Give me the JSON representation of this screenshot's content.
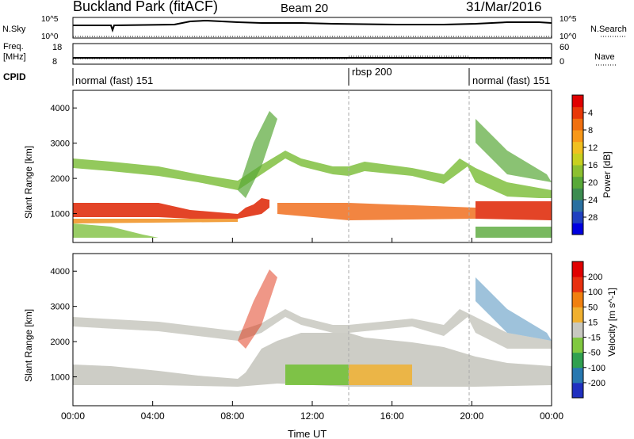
{
  "header": {
    "site": "Buckland Park (fitACF)",
    "beam": "Beam 20",
    "date": "31/Mar/2016"
  },
  "noise_panel": {
    "left_label": "N.Sky",
    "right_label": "N.Search",
    "ytick_top": "10^5",
    "ytick_bottom": "10^0",
    "right_tick_top": "10^5",
    "right_tick_bottom": "10^0"
  },
  "freq_panel": {
    "left_label_1": "Freq.",
    "left_label_2": "[MHz]",
    "right_label": "Nave",
    "left_tick_top": "18",
    "left_tick_bottom": "8",
    "right_tick_top": "60",
    "right_tick_bottom": "0"
  },
  "cpid_panel": {
    "label": "CPID",
    "modes": [
      {
        "name": "normal (fast) 151",
        "start_hour": 0
      },
      {
        "name": "rbsp 200",
        "start_hour": 14
      },
      {
        "name": "normal (fast) 151",
        "start_hour": 20
      }
    ]
  },
  "chart_data": [
    {
      "type": "heatmap",
      "title": "",
      "ylabel": "Slant Range [km]",
      "xlabel": "",
      "ylim": [
        180,
        4500
      ],
      "xlim": [
        0,
        24
      ],
      "y_ticks": [
        "1000",
        "2000",
        "3000",
        "4000"
      ],
      "colorbar": {
        "label": "Power [dB]",
        "ticks": [
          "4",
          "8",
          "12",
          "16",
          "20",
          "24",
          "28"
        ],
        "colors": [
          "#0000e0",
          "#2040c0",
          "#2a70a0",
          "#3c8c50",
          "#58a838",
          "#8cc030",
          "#c8d020",
          "#f0c020",
          "#f89818",
          "#f07010",
          "#e83808",
          "#e00000"
        ]
      }
    },
    {
      "type": "heatmap",
      "title": "",
      "ylabel": "Slant Range [km]",
      "xlabel": "Time UT",
      "ylim": [
        180,
        4500
      ],
      "xlim": [
        0,
        24
      ],
      "y_ticks": [
        "1000",
        "2000",
        "3000",
        "4000"
      ],
      "x_ticks": [
        "00:00",
        "04:00",
        "08:00",
        "12:00",
        "16:00",
        "20:00",
        "00:00"
      ],
      "colorbar": {
        "label": "Velocity [m s^-1]",
        "ticks": [
          "200",
          "100",
          "50",
          "15",
          "-15",
          "-50",
          "-100",
          "-200"
        ],
        "colors": [
          "#2030c0",
          "#2878b0",
          "#30a050",
          "#80c840",
          "#c8c8c0",
          "#f0b030",
          "#f08010",
          "#e83010",
          "#e00000"
        ]
      }
    }
  ]
}
